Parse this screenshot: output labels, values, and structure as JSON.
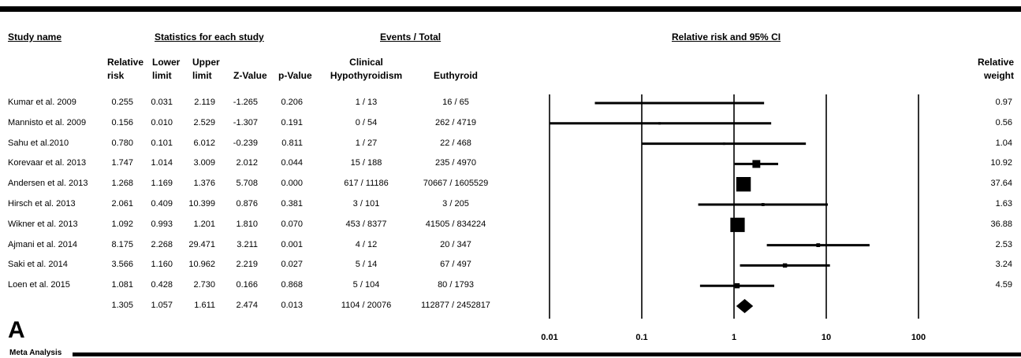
{
  "headers": {
    "study_name": "Study name",
    "statistics": "Statistics for each study",
    "events": "Events / Total",
    "plot": "Relative risk and 95% CI"
  },
  "columns": {
    "rr": [
      "Relative",
      "risk"
    ],
    "lower": [
      "Lower",
      "limit"
    ],
    "upper": [
      "Upper",
      "limit"
    ],
    "z": [
      "",
      "Z-Value"
    ],
    "p": [
      "",
      "p-Value"
    ],
    "clinical": [
      "Clinical",
      "Hypothyroidism"
    ],
    "euthyroid": [
      "",
      "Euthyroid"
    ],
    "weight": [
      "Relative",
      "weight"
    ]
  },
  "rows": [
    {
      "study": "Kumar et al. 2009",
      "rr": "0.255",
      "lower": "0.031",
      "upper": "2.119",
      "z": "-1.265",
      "p": "0.206",
      "clinical": "1 / 13",
      "euthyroid": "16 / 65",
      "weight": "0.97"
    },
    {
      "study": "Mannisto et al. 2009",
      "rr": "0.156",
      "lower": "0.010",
      "upper": "2.529",
      "z": "-1.307",
      "p": "0.191",
      "clinical": "0 / 54",
      "euthyroid": "262 / 4719",
      "weight": "0.56"
    },
    {
      "study": "Sahu et al.2010",
      "rr": "0.780",
      "lower": "0.101",
      "upper": "6.012",
      "z": "-0.239",
      "p": "0.811",
      "clinical": "1 / 27",
      "euthyroid": "22 / 468",
      "weight": "1.04"
    },
    {
      "study": "Korevaar et al. 2013",
      "rr": "1.747",
      "lower": "1.014",
      "upper": "3.009",
      "z": "2.012",
      "p": "0.044",
      "clinical": "15 / 188",
      "euthyroid": "235 / 4970",
      "weight": "10.92"
    },
    {
      "study": "Andersen et al. 2013",
      "rr": "1.268",
      "lower": "1.169",
      "upper": "1.376",
      "z": "5.708",
      "p": "0.000",
      "clinical": "617 / 11186",
      "euthyroid": "70667 / 1605529",
      "weight": "37.64"
    },
    {
      "study": "Hirsch et al. 2013",
      "rr": "2.061",
      "lower": "0.409",
      "upper": "10.399",
      "z": "0.876",
      "p": "0.381",
      "clinical": "3 / 101",
      "euthyroid": "3 / 205",
      "weight": "1.63"
    },
    {
      "study": "Wikner et al. 2013",
      "rr": "1.092",
      "lower": "0.993",
      "upper": "1.201",
      "z": "1.810",
      "p": "0.070",
      "clinical": "453 / 8377",
      "euthyroid": "41505 / 834224",
      "weight": "36.88"
    },
    {
      "study": "Ajmani et al. 2014",
      "rr": "8.175",
      "lower": "2.268",
      "upper": "29.471",
      "z": "3.211",
      "p": "0.001",
      "clinical": "4 / 12",
      "euthyroid": "20 / 347",
      "weight": "2.53"
    },
    {
      "study": "Saki et al. 2014",
      "rr": "3.566",
      "lower": "1.160",
      "upper": "10.962",
      "z": "2.219",
      "p": "0.027",
      "clinical": "5 / 14",
      "euthyroid": "67 / 497",
      "weight": "3.24"
    },
    {
      "study": "Loen et al. 2015",
      "rr": "1.081",
      "lower": "0.428",
      "upper": "2.730",
      "z": "0.166",
      "p": "0.868",
      "clinical": "5 / 104",
      "euthyroid": "80 / 1793",
      "weight": "4.59"
    }
  ],
  "summary": {
    "study": "",
    "rr": "1.305",
    "lower": "1.057",
    "upper": "1.611",
    "z": "2.474",
    "p": "0.013",
    "clinical": "1104 / 20076",
    "euthyroid": "112877 / 2452817",
    "weight": ""
  },
  "panel_letter": "A",
  "footer_label": "Meta Analysis",
  "chart_data": {
    "type": "forest",
    "scale": "log",
    "xlim": [
      0.01,
      100
    ],
    "x_ticks": [
      "0.01",
      "0.1",
      "1",
      "10",
      "100"
    ],
    "title": "Relative risk and 95% CI",
    "categories": [
      "Kumar et al. 2009",
      "Mannisto et al. 2009",
      "Sahu et al.2010",
      "Korevaar et al. 2013",
      "Andersen et al. 2013",
      "Hirsch et al. 2013",
      "Wikner et al. 2013",
      "Ajmani et al. 2014",
      "Saki et al. 2014",
      "Loen et al. 2015"
    ],
    "estimate": [
      0.255,
      0.156,
      0.78,
      1.747,
      1.268,
      2.061,
      1.092,
      8.175,
      3.566,
      1.081
    ],
    "lower": [
      0.031,
      0.01,
      0.101,
      1.014,
      1.169,
      0.409,
      0.993,
      2.268,
      1.16,
      0.428
    ],
    "upper": [
      2.119,
      2.529,
      6.012,
      3.009,
      1.376,
      10.399,
      1.201,
      29.471,
      10.962,
      2.73
    ],
    "weight": [
      0.97,
      0.56,
      1.04,
      10.92,
      37.64,
      1.63,
      36.88,
      2.53,
      3.24,
      4.59
    ],
    "summary": {
      "estimate": 1.305,
      "lower": 1.057,
      "upper": 1.611
    },
    "colors": {
      "marks": "#000000"
    }
  }
}
